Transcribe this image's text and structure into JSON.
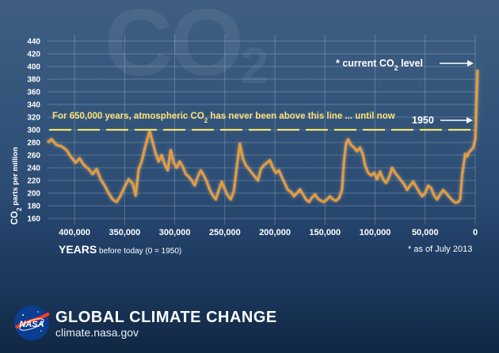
{
  "colors": {
    "line": "#f59a30",
    "glow": "#ffd27a",
    "threshold": "#f2e36b",
    "text": "#ffffff",
    "note": "#fbe27a",
    "grid": "rgba(255,255,255,0.22)"
  },
  "watermark": {
    "main": "CO",
    "sub": "2"
  },
  "footer": {
    "title": "GLOBAL CLIMATE CHANGE",
    "url": "climate.nasa.gov",
    "logo_icon": "nasa-meatball-icon",
    "logo_text": "NASA"
  },
  "chart_data": {
    "type": "line",
    "x_axis": {
      "label": "YEARS",
      "sublabel": "before today (0 = 1950)",
      "range": [
        -427000,
        0
      ],
      "ticks": [
        {
          "v": -400000,
          "label": "400,000"
        },
        {
          "v": -350000,
          "label": "350,000"
        },
        {
          "v": -300000,
          "label": "300,000"
        },
        {
          "v": -250000,
          "label": "250,000"
        },
        {
          "v": -200000,
          "label": "200,000"
        },
        {
          "v": -150000,
          "label": "150,000"
        },
        {
          "v": -100000,
          "label": "100,000"
        },
        {
          "v": -50000,
          "label": "50,000"
        },
        {
          "v": 0,
          "label": "0"
        }
      ]
    },
    "y_axis": {
      "label_prefix": "CO",
      "label_sub": "2",
      "label_suffix": " parts per million",
      "range": [
        150,
        450
      ],
      "ticks": [
        160,
        180,
        200,
        220,
        240,
        260,
        280,
        300,
        320,
        340,
        360,
        380,
        400,
        420,
        440
      ],
      "grid": true
    },
    "threshold": {
      "value": 300,
      "text_a": "For 650,000 years, atmospheric CO",
      "text_sub": "2",
      "text_b": " has never been above this line ... until now"
    },
    "annotations": {
      "current_a": "* current CO",
      "current_sub": "2",
      "current_b": " level",
      "current_value": 395,
      "year_label": "1950",
      "year_value": 300,
      "note": "* as of July 2013"
    },
    "series": [
      {
        "points": [
          [
            -427000,
            280
          ],
          [
            -423000,
            285
          ],
          [
            -418000,
            276
          ],
          [
            -413000,
            274
          ],
          [
            -408000,
            268
          ],
          [
            -404000,
            258
          ],
          [
            -399000,
            248
          ],
          [
            -395000,
            255
          ],
          [
            -391000,
            245
          ],
          [
            -386000,
            238
          ],
          [
            -382000,
            230
          ],
          [
            -378000,
            238
          ],
          [
            -374000,
            222
          ],
          [
            -370000,
            212
          ],
          [
            -366000,
            200
          ],
          [
            -362000,
            190
          ],
          [
            -358000,
            186
          ],
          [
            -354000,
            196
          ],
          [
            -350000,
            210
          ],
          [
            -346000,
            222
          ],
          [
            -342000,
            215
          ],
          [
            -339000,
            196
          ],
          [
            -336000,
            238
          ],
          [
            -333000,
            250
          ],
          [
            -330000,
            270
          ],
          [
            -327000,
            288
          ],
          [
            -325000,
            298
          ],
          [
            -322000,
            280
          ],
          [
            -319000,
            262
          ],
          [
            -316000,
            250
          ],
          [
            -313000,
            260
          ],
          [
            -310000,
            245
          ],
          [
            -307000,
            236
          ],
          [
            -304000,
            268
          ],
          [
            -301000,
            248
          ],
          [
            -298000,
            240
          ],
          [
            -295000,
            250
          ],
          [
            -292000,
            242
          ],
          [
            -289000,
            230
          ],
          [
            -286000,
            226
          ],
          [
            -283000,
            220
          ],
          [
            -280000,
            212
          ],
          [
            -277000,
            226
          ],
          [
            -274000,
            236
          ],
          [
            -271000,
            228
          ],
          [
            -268000,
            218
          ],
          [
            -265000,
            205
          ],
          [
            -262000,
            196
          ],
          [
            -259000,
            190
          ],
          [
            -256000,
            205
          ],
          [
            -253000,
            218
          ],
          [
            -250000,
            206
          ],
          [
            -247000,
            196
          ],
          [
            -244000,
            190
          ],
          [
            -241000,
            203
          ],
          [
            -238000,
            242
          ],
          [
            -235000,
            278
          ],
          [
            -232000,
            255
          ],
          [
            -229000,
            244
          ],
          [
            -226000,
            238
          ],
          [
            -223000,
            232
          ],
          [
            -220000,
            226
          ],
          [
            -217000,
            220
          ],
          [
            -214000,
            238
          ],
          [
            -211000,
            244
          ],
          [
            -208000,
            248
          ],
          [
            -205000,
            252
          ],
          [
            -202000,
            240
          ],
          [
            -199000,
            232
          ],
          [
            -196000,
            236
          ],
          [
            -193000,
            225
          ],
          [
            -190000,
            215
          ],
          [
            -187000,
            205
          ],
          [
            -184000,
            202
          ],
          [
            -181000,
            195
          ],
          [
            -178000,
            200
          ],
          [
            -175000,
            206
          ],
          [
            -172000,
            198
          ],
          [
            -169000,
            190
          ],
          [
            -166000,
            186
          ],
          [
            -163000,
            193
          ],
          [
            -160000,
            198
          ],
          [
            -157000,
            191
          ],
          [
            -154000,
            188
          ],
          [
            -151000,
            186
          ],
          [
            -148000,
            190
          ],
          [
            -145000,
            195
          ],
          [
            -142000,
            190
          ],
          [
            -139000,
            188
          ],
          [
            -136000,
            192
          ],
          [
            -133000,
            205
          ],
          [
            -131000,
            250
          ],
          [
            -129000,
            278
          ],
          [
            -127000,
            285
          ],
          [
            -124000,
            276
          ],
          [
            -121000,
            272
          ],
          [
            -118000,
            266
          ],
          [
            -115000,
            272
          ],
          [
            -112000,
            260
          ],
          [
            -110000,
            244
          ],
          [
            -107000,
            232
          ],
          [
            -104000,
            228
          ],
          [
            -101000,
            232
          ],
          [
            -98000,
            222
          ],
          [
            -95000,
            234
          ],
          [
            -92000,
            222
          ],
          [
            -89000,
            216
          ],
          [
            -86000,
            225
          ],
          [
            -83000,
            240
          ],
          [
            -80000,
            232
          ],
          [
            -77000,
            226
          ],
          [
            -74000,
            220
          ],
          [
            -71000,
            214
          ],
          [
            -68000,
            205
          ],
          [
            -65000,
            212
          ],
          [
            -62000,
            218
          ],
          [
            -59000,
            210
          ],
          [
            -56000,
            202
          ],
          [
            -53000,
            195
          ],
          [
            -50000,
            200
          ],
          [
            -47000,
            212
          ],
          [
            -44000,
            208
          ],
          [
            -41000,
            196
          ],
          [
            -38000,
            190
          ],
          [
            -35000,
            198
          ],
          [
            -32000,
            205
          ],
          [
            -29000,
            200
          ],
          [
            -26000,
            194
          ],
          [
            -23000,
            189
          ],
          [
            -20000,
            185
          ],
          [
            -17000,
            186
          ],
          [
            -15000,
            190
          ],
          [
            -13000,
            230
          ],
          [
            -10000,
            262
          ],
          [
            -8000,
            258
          ],
          [
            -6000,
            265
          ],
          [
            -4000,
            268
          ],
          [
            -2000,
            272
          ],
          [
            -800,
            280
          ],
          [
            0,
            285
          ],
          [
            600,
            310
          ],
          [
            1200,
            340
          ],
          [
            1800,
            370
          ],
          [
            2200,
            395
          ]
        ]
      }
    ]
  }
}
